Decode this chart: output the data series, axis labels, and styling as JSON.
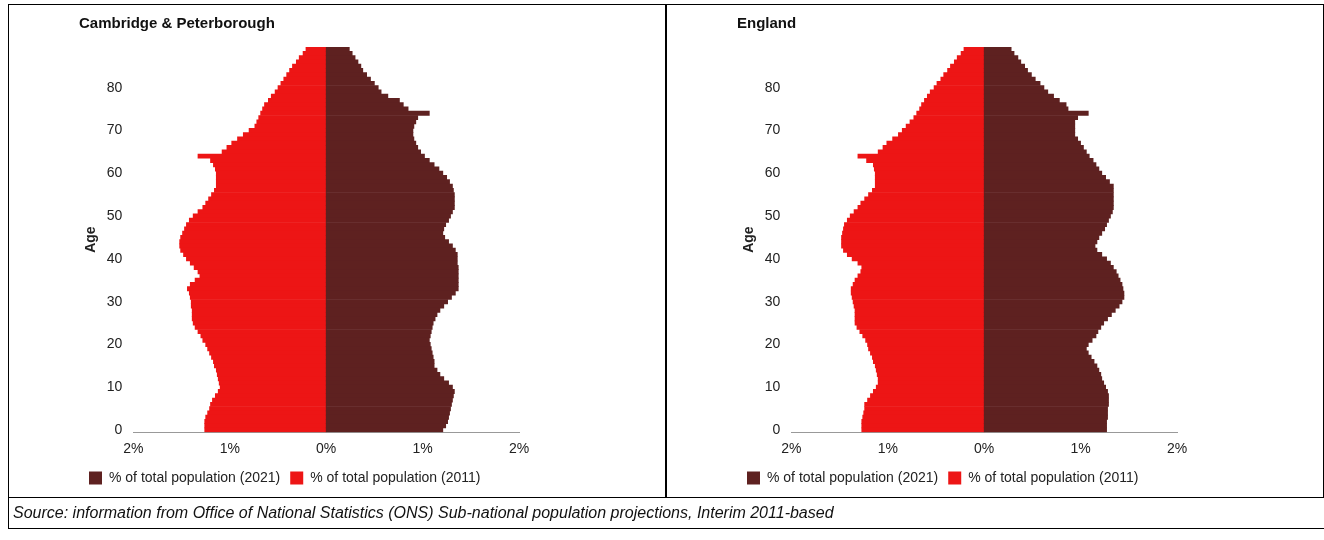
{
  "chart_data": [
    {
      "type": "bar",
      "orientation": "horizontal",
      "stacked": true,
      "title": "Cambridge & Peterborough",
      "ylabel": "Age",
      "legend": "bottom",
      "grid": false,
      "categories": [
        null,
        null,
        null,
        null,
        null,
        null,
        null,
        null,
        null,
        "80",
        null,
        null,
        null,
        null,
        null,
        null,
        null,
        null,
        null,
        "70",
        null,
        null,
        null,
        null,
        null,
        null,
        null,
        null,
        null,
        "60",
        null,
        null,
        null,
        null,
        null,
        null,
        null,
        null,
        null,
        "50",
        null,
        null,
        null,
        null,
        null,
        null,
        null,
        null,
        null,
        "40",
        null,
        null,
        null,
        null,
        null,
        null,
        null,
        null,
        null,
        "30",
        null,
        null,
        null,
        null,
        null,
        null,
        null,
        null,
        null,
        "20",
        null,
        null,
        null,
        null,
        null,
        null,
        null,
        null,
        null,
        "10",
        null,
        null,
        null,
        null,
        null,
        null,
        null,
        null,
        null,
        "0"
      ],
      "xlim": [
        -2,
        2
      ],
      "xticks": [
        {
          "value": -2,
          "label": "2%"
        },
        {
          "value": -1,
          "label": "1%"
        },
        {
          "value": 0,
          "label": "0%"
        },
        {
          "value": 1,
          "label": "1%"
        },
        {
          "value": 2,
          "label": "2%"
        }
      ],
      "series": [
        {
          "name": "% of total population (2021)",
          "color": "#5e2120",
          "values": [
            0.24,
            0.27,
            0.3,
            0.33,
            0.36,
            0.38,
            0.42,
            0.46,
            0.5,
            0.54,
            0.57,
            0.64,
            0.76,
            0.8,
            0.85,
            1.07,
            0.95,
            0.93,
            0.91,
            0.9,
            0.9,
            0.91,
            0.93,
            0.95,
            0.98,
            1.02,
            1.07,
            1.12,
            1.17,
            1.21,
            1.25,
            1.28,
            1.31,
            1.32,
            1.33,
            1.33,
            1.33,
            1.33,
            1.31,
            1.29,
            1.27,
            1.24,
            1.22,
            1.21,
            1.23,
            1.27,
            1.31,
            1.34,
            1.36,
            1.36,
            1.36,
            1.37,
            1.37,
            1.37,
            1.37,
            1.37,
            1.37,
            1.34,
            1.3,
            1.26,
            1.22,
            1.18,
            1.15,
            1.13,
            1.11,
            1.1,
            1.09,
            1.08,
            1.07,
            1.08,
            1.09,
            1.1,
            1.11,
            1.12,
            1.12,
            1.15,
            1.18,
            1.22,
            1.27,
            1.31,
            1.33,
            1.32,
            1.31,
            1.3,
            1.29,
            1.28,
            1.27,
            1.26,
            1.24,
            1.21
          ]
        },
        {
          "name": "% of total population (2011)",
          "color": "#ed1515",
          "values": [
            -0.21,
            -0.24,
            -0.28,
            -0.31,
            -0.35,
            -0.38,
            -0.41,
            -0.44,
            -0.47,
            -0.5,
            -0.53,
            -0.57,
            -0.6,
            -0.64,
            -0.66,
            -0.68,
            -0.7,
            -0.72,
            -0.74,
            -0.8,
            -0.86,
            -0.92,
            -0.98,
            -1.03,
            -1.08,
            -1.33,
            -1.2,
            -1.17,
            -1.15,
            -1.14,
            -1.14,
            -1.14,
            -1.14,
            -1.16,
            -1.19,
            -1.22,
            -1.25,
            -1.28,
            -1.33,
            -1.38,
            -1.42,
            -1.45,
            -1.47,
            -1.49,
            -1.51,
            -1.52,
            -1.52,
            -1.51,
            -1.48,
            -1.45,
            -1.41,
            -1.37,
            -1.33,
            -1.31,
            -1.36,
            -1.41,
            -1.44,
            -1.42,
            -1.41,
            -1.4,
            -1.4,
            -1.39,
            -1.39,
            -1.39,
            -1.38,
            -1.36,
            -1.33,
            -1.3,
            -1.28,
            -1.25,
            -1.23,
            -1.21,
            -1.19,
            -1.17,
            -1.16,
            -1.14,
            -1.13,
            -1.12,
            -1.11,
            -1.1,
            -1.12,
            -1.15,
            -1.18,
            -1.2,
            -1.21,
            -1.23,
            -1.25,
            -1.26,
            -1.26,
            -1.26
          ]
        }
      ],
      "annotations": [
        "Source: information from Office of National Statistics (ONS) Sub-national population projections, Interim 2011-based"
      ]
    },
    {
      "type": "bar",
      "orientation": "horizontal",
      "stacked": true,
      "title": "England",
      "ylabel": "Age",
      "legend": "bottom",
      "grid": false,
      "categories": [
        null,
        null,
        null,
        null,
        null,
        null,
        null,
        null,
        null,
        "80",
        null,
        null,
        null,
        null,
        null,
        null,
        null,
        null,
        null,
        "70",
        null,
        null,
        null,
        null,
        null,
        null,
        null,
        null,
        null,
        "60",
        null,
        null,
        null,
        null,
        null,
        null,
        null,
        null,
        null,
        "50",
        null,
        null,
        null,
        null,
        null,
        null,
        null,
        null,
        null,
        "40",
        null,
        null,
        null,
        null,
        null,
        null,
        null,
        null,
        null,
        "30",
        null,
        null,
        null,
        null,
        null,
        null,
        null,
        null,
        null,
        "20",
        null,
        null,
        null,
        null,
        null,
        null,
        null,
        null,
        null,
        "10",
        null,
        null,
        null,
        null,
        null,
        null,
        null,
        null,
        null,
        "0"
      ],
      "xlim": [
        -2,
        2
      ],
      "xticks": [
        {
          "value": -2,
          "label": "2%"
        },
        {
          "value": -1,
          "label": "1%"
        },
        {
          "value": 0,
          "label": "0%"
        },
        {
          "value": 1,
          "label": "1%"
        },
        {
          "value": 2,
          "label": "2%"
        }
      ],
      "series": [
        {
          "name": "% of total population (2021)",
          "color": "#5e2120",
          "values": [
            0.28,
            0.31,
            0.35,
            0.38,
            0.42,
            0.45,
            0.49,
            0.53,
            0.58,
            0.62,
            0.66,
            0.72,
            0.78,
            0.85,
            0.87,
            1.08,
            0.97,
            0.94,
            0.94,
            0.94,
            0.94,
            0.97,
            1.0,
            1.03,
            1.06,
            1.09,
            1.13,
            1.16,
            1.19,
            1.22,
            1.26,
            1.3,
            1.34,
            1.34,
            1.34,
            1.34,
            1.34,
            1.34,
            1.33,
            1.31,
            1.29,
            1.27,
            1.25,
            1.22,
            1.19,
            1.17,
            1.15,
            1.17,
            1.22,
            1.27,
            1.31,
            1.34,
            1.37,
            1.39,
            1.41,
            1.43,
            1.44,
            1.45,
            1.45,
            1.43,
            1.4,
            1.36,
            1.32,
            1.28,
            1.24,
            1.21,
            1.18,
            1.16,
            1.12,
            1.08,
            1.06,
            1.08,
            1.11,
            1.14,
            1.17,
            1.19,
            1.21,
            1.22,
            1.24,
            1.26,
            1.28,
            1.29,
            1.29,
            1.29,
            1.28,
            1.28,
            1.28,
            1.27,
            1.27,
            1.27
          ]
        },
        {
          "name": "% of total population (2011)",
          "color": "#ed1515",
          "values": [
            -0.21,
            -0.24,
            -0.28,
            -0.31,
            -0.35,
            -0.38,
            -0.42,
            -0.45,
            -0.49,
            -0.52,
            -0.56,
            -0.59,
            -0.62,
            -0.65,
            -0.67,
            -0.7,
            -0.73,
            -0.77,
            -0.81,
            -0.85,
            -0.89,
            -0.95,
            -1.01,
            -1.05,
            -1.1,
            -1.31,
            -1.22,
            -1.15,
            -1.14,
            -1.13,
            -1.13,
            -1.13,
            -1.13,
            -1.16,
            -1.2,
            -1.24,
            -1.28,
            -1.31,
            -1.35,
            -1.39,
            -1.42,
            -1.45,
            -1.46,
            -1.47,
            -1.48,
            -1.48,
            -1.48,
            -1.46,
            -1.42,
            -1.37,
            -1.31,
            -1.27,
            -1.28,
            -1.31,
            -1.34,
            -1.36,
            -1.38,
            -1.38,
            -1.37,
            -1.36,
            -1.35,
            -1.34,
            -1.34,
            -1.34,
            -1.34,
            -1.32,
            -1.29,
            -1.26,
            -1.23,
            -1.21,
            -1.2,
            -1.18,
            -1.16,
            -1.15,
            -1.13,
            -1.12,
            -1.11,
            -1.1,
            -1.1,
            -1.12,
            -1.15,
            -1.18,
            -1.21,
            -1.24,
            -1.24,
            -1.25,
            -1.26,
            -1.27,
            -1.27,
            -1.27
          ]
        }
      ]
    }
  ]
}
